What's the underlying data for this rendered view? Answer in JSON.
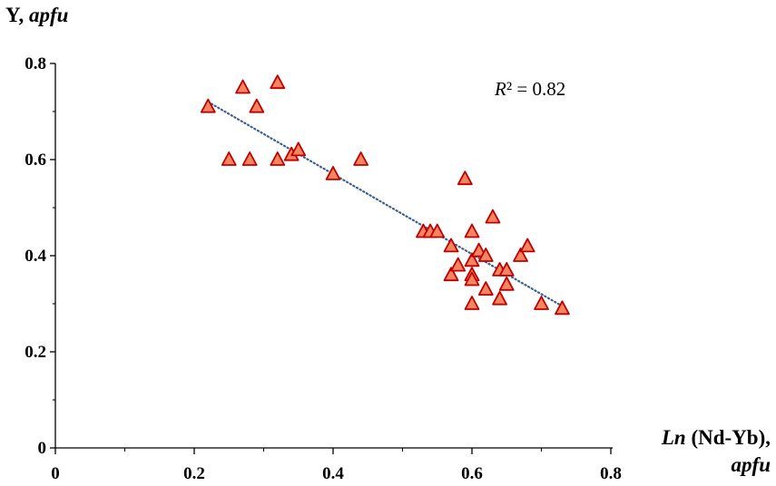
{
  "chart_data": {
    "type": "scatter",
    "ylabel": {
      "prefix": "Y, ",
      "unit": "apfu"
    },
    "xlabel": {
      "prefix": "Ln",
      "suffix": " (Nd-Yb),",
      "unit": "apfu"
    },
    "annotation": {
      "r_symbol": "R",
      "value": "² = 0.82"
    },
    "xlim": [
      0,
      0.8
    ],
    "ylim": [
      0,
      0.8
    ],
    "xticks": [
      "0",
      "0.2",
      "0.4",
      "0.6",
      "0.8"
    ],
    "yticks": [
      "0",
      "0.2",
      "0.4",
      "0.6",
      "0.8"
    ],
    "marker": {
      "shape": "triangle",
      "fill": "#F58560",
      "stroke": "#C00000"
    },
    "trendline": {
      "x": [
        0.22,
        0.73
      ],
      "y": [
        0.72,
        0.295
      ],
      "color": "#3A5F95",
      "style": "dotted"
    },
    "points": [
      [
        0.22,
        0.71
      ],
      [
        0.27,
        0.75
      ],
      [
        0.32,
        0.76
      ],
      [
        0.29,
        0.71
      ],
      [
        0.25,
        0.6
      ],
      [
        0.28,
        0.6
      ],
      [
        0.32,
        0.6
      ],
      [
        0.34,
        0.61
      ],
      [
        0.35,
        0.62
      ],
      [
        0.4,
        0.57
      ],
      [
        0.44,
        0.6
      ],
      [
        0.53,
        0.45
      ],
      [
        0.54,
        0.45
      ],
      [
        0.55,
        0.45
      ],
      [
        0.57,
        0.42
      ],
      [
        0.57,
        0.36
      ],
      [
        0.58,
        0.38
      ],
      [
        0.59,
        0.56
      ],
      [
        0.6,
        0.45
      ],
      [
        0.6,
        0.39
      ],
      [
        0.6,
        0.36
      ],
      [
        0.6,
        0.35
      ],
      [
        0.6,
        0.3
      ],
      [
        0.61,
        0.41
      ],
      [
        0.62,
        0.4
      ],
      [
        0.62,
        0.33
      ],
      [
        0.63,
        0.48
      ],
      [
        0.64,
        0.37
      ],
      [
        0.64,
        0.31
      ],
      [
        0.65,
        0.37
      ],
      [
        0.65,
        0.34
      ],
      [
        0.67,
        0.4
      ],
      [
        0.68,
        0.42
      ],
      [
        0.7,
        0.3
      ],
      [
        0.73,
        0.29
      ]
    ]
  }
}
